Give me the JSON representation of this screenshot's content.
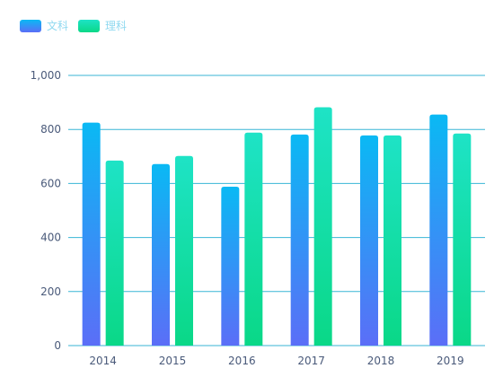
{
  "chart_data": {
    "type": "bar",
    "categories": [
      "2014",
      "2015",
      "2016",
      "2017",
      "2018",
      "2019"
    ],
    "series": [
      {
        "name": "文科",
        "values": [
          825,
          672,
          588,
          781,
          778,
          855
        ],
        "color_top": "#0ab9f4",
        "color_bottom": "#5b6ef7"
      },
      {
        "name": "理科",
        "values": [
          685,
          702,
          788,
          882,
          778,
          785
        ],
        "color_top": "#1ee3c6",
        "color_bottom": "#0ad887"
      }
    ],
    "ylim": [
      0,
      1000
    ],
    "yticks": [
      "0",
      "200",
      "400",
      "600",
      "800",
      "1,000"
    ],
    "ytick_values": [
      0,
      200,
      400,
      600,
      800,
      1000
    ],
    "legend_position": "top-left",
    "legend_text_color": "#8fd9f0",
    "grid": true,
    "grid_color": "#38b6d6",
    "axis_label_color": "#4a5a7a"
  }
}
